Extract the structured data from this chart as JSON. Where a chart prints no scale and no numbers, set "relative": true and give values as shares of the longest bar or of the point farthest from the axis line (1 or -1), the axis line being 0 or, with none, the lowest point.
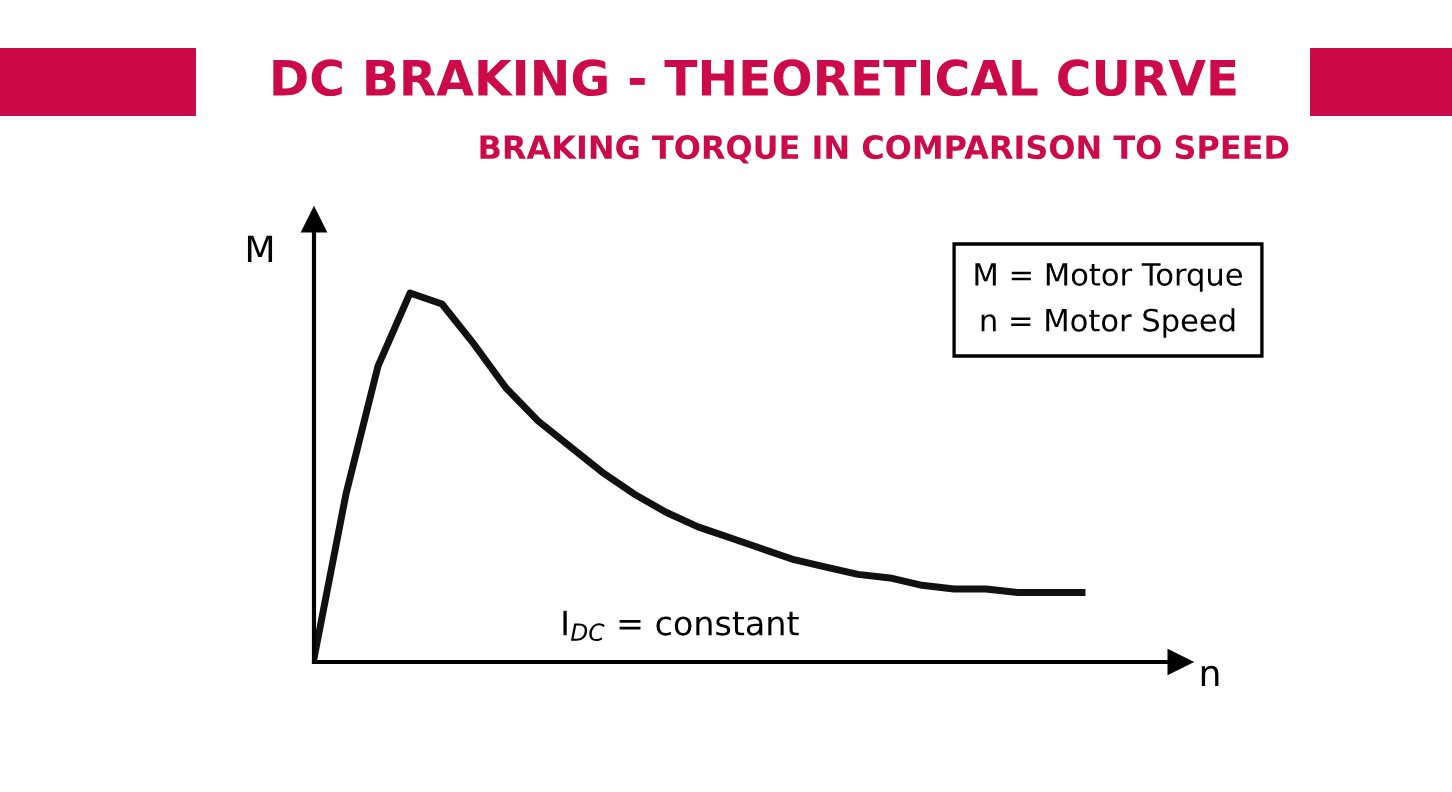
{
  "chart_data": {
    "type": "line",
    "title": "DC BRAKING - THEORETICAL CURVE",
    "subtitle": "BRAKING TORQUE IN COMPARISON TO SPEED",
    "xlabel": "n",
    "ylabel": "M",
    "relative": true,
    "legend": false,
    "marker": "none",
    "line_style": "solid",
    "categories": [
      null,
      null,
      null,
      null,
      null,
      null,
      null,
      null,
      null,
      null,
      null,
      null,
      null,
      null,
      null,
      null,
      null,
      null,
      null,
      null,
      null,
      null,
      null,
      null,
      null
    ],
    "series": [
      {
        "color": "#111111",
        "values": [
          0,
          0.45,
          0.8,
          1.0,
          0.97,
          0.86,
          0.74,
          0.65,
          0.58,
          0.51,
          0.45,
          0.4,
          0.36,
          0.33,
          0.3,
          0.27,
          0.25,
          0.23,
          0.22,
          0.2,
          0.19,
          0.19,
          0.18,
          0.18,
          0.18
        ]
      }
    ],
    "annotations": [
      "M = Motor Torque\nn = Motor Speed",
      "I$_{DC}$ = constant"
    ]
  }
}
